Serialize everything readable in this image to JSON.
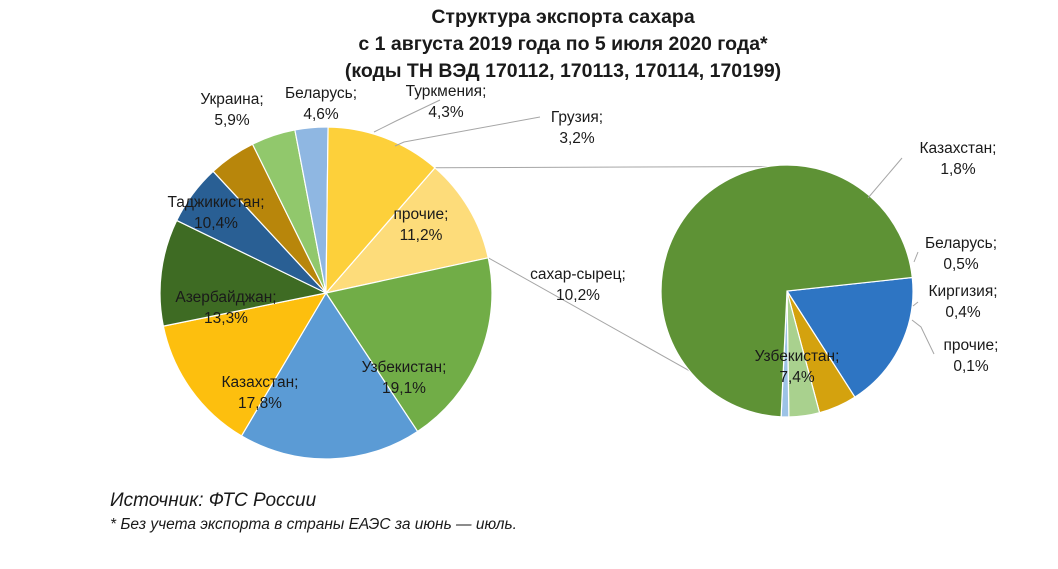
{
  "title": {
    "line1": "Структура экспорта сахара",
    "line2": "с 1 августа 2019 года по 5 июля 2020 года*",
    "line3": "(коды ТН ВЭД 170112, 170113, 170114, 170199)"
  },
  "source": "Источник: ФТС России",
  "footnote": "* Без учета экспорта в страны ЕАЭС за июнь — июль.",
  "chart_data": [
    {
      "type": "pie",
      "title": "",
      "slices": [
        {
          "label": "сахар-сырец",
          "value": 10.2,
          "display": "сахар-сырец;\n10,2%",
          "color": "#fddc7a"
        },
        {
          "label": "Узбекистан",
          "value": 19.1,
          "display": "Узбекистан;\n19,1%",
          "color": "#71ad47"
        },
        {
          "label": "Казахстан",
          "value": 17.8,
          "display": "Казахстан;\n17,8%",
          "color": "#5b9bd5"
        },
        {
          "label": "Азербайджан",
          "value": 13.3,
          "display": "Азербайджан;\n13,3%",
          "color": "#fdbf0e"
        },
        {
          "label": "Таджикистан",
          "value": 10.4,
          "display": "Таджикистан;\n10,4%",
          "color": "#3e6b23"
        },
        {
          "label": "Украина",
          "value": 5.9,
          "display": "Украина;\n5,9%",
          "color": "#295f94"
        },
        {
          "label": "Беларусь",
          "value": 4.6,
          "display": "Беларусь;\n4,6%",
          "color": "#b8860b"
        },
        {
          "label": "Туркмения",
          "value": 4.3,
          "display": "Туркмения;\n4,3%",
          "color": "#91c86c"
        },
        {
          "label": "Грузия",
          "value": 3.2,
          "display": "Грузия;\n3,2%",
          "color": "#8fb7e2"
        },
        {
          "label": "прочие",
          "value": 11.2,
          "display": "прочие;\n11,2%",
          "color": "#fdd03a"
        }
      ]
    },
    {
      "type": "pie",
      "title": "",
      "detail_of": "сахар-сырец",
      "slices": [
        {
          "label": "Казахстан",
          "value": 1.8,
          "display": "Казахстан;\n1,8%",
          "color": "#2e75c3"
        },
        {
          "label": "Беларусь",
          "value": 0.5,
          "display": "Беларусь;\n0,5%",
          "color": "#d4a20e"
        },
        {
          "label": "Киргизия",
          "value": 0.4,
          "display": "Киргизия;\n0,4%",
          "color": "#a9d18e"
        },
        {
          "label": "прочие",
          "value": 0.1,
          "display": "прочие;\n0,1%",
          "color": "#9dc3e6"
        },
        {
          "label": "Узбекистан",
          "value": 7.4,
          "display": "Узбекистан;\n7,4%",
          "color": "#5e9235"
        }
      ]
    }
  ]
}
